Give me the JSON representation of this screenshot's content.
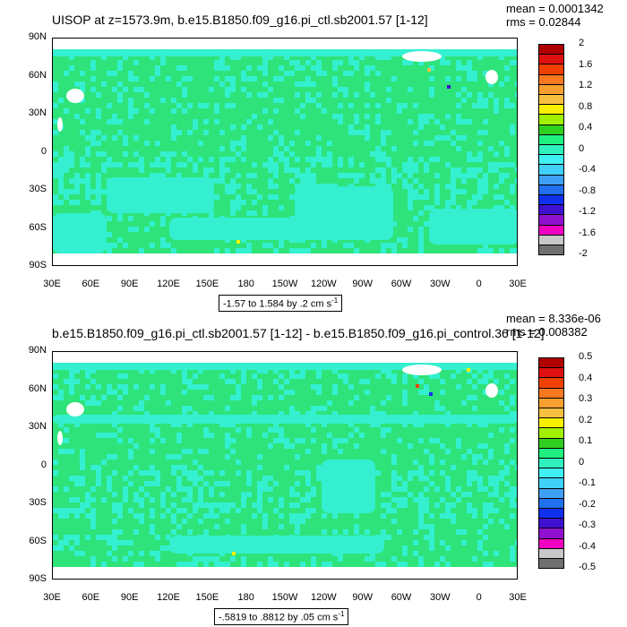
{
  "chart_data": [
    {
      "type": "heatmap",
      "title": "UISOP at z=1573.9m, b.e15.B1850.f09_g16.pi_ctl.sb2001.57 [1-12]",
      "mean_text": "mean = 0.0001342",
      "rms_text": "rms = 0.02844",
      "range_text": "-1.57 to 1.584 by .2 cm s",
      "range_sup": "-1",
      "lat_ticks": [
        "90N",
        "60N",
        "30N",
        "0",
        "30S",
        "60S",
        "90S"
      ],
      "lon_ticks": [
        "30E",
        "60E",
        "90E",
        "120E",
        "150E",
        "180",
        "150W",
        "120W",
        "90W",
        "60W",
        "30W",
        "0",
        "30E"
      ],
      "colorbar_labels": [
        "2",
        "1.6",
        "1.2",
        "0.8",
        "0.4",
        "0",
        "-0.4",
        "-0.8",
        "-1.2",
        "-1.6",
        "-2"
      ],
      "colorbar_colors": [
        "#b00000",
        "#e01010",
        "#f04000",
        "#f87820",
        "#f8a030",
        "#f8c040",
        "#f8f000",
        "#a0f000",
        "#30d020",
        "#20f080",
        "#30f0c0",
        "#40f0f0",
        "#40d0f8",
        "#40a0f8",
        "#2070f0",
        "#1030f0",
        "#4010d0",
        "#9010d0",
        "#f000c0",
        "#c8c8c8",
        "#707070"
      ]
    },
    {
      "type": "heatmap",
      "title": "b.e15.B1850.f09_g16.pi_ctl.sb2001.57 [1-12] - b.e15.B1850.f09_g16.pi_control.36 [1-12]",
      "mean_text": "mean = 8.336e-06",
      "rms_text": "rms = 0.008382",
      "range_text": "-.5819 to .8812 by .05 cm s",
      "range_sup": "-1",
      "lat_ticks": [
        "90N",
        "60N",
        "30N",
        "0",
        "30S",
        "60S",
        "90S"
      ],
      "lon_ticks": [
        "30E",
        "60E",
        "90E",
        "120E",
        "150E",
        "180",
        "150W",
        "120W",
        "90W",
        "60W",
        "30W",
        "0",
        "30E"
      ],
      "colorbar_labels": [
        "0.5",
        "0.4",
        "0.3",
        "0.2",
        "0.1",
        "0",
        "-0.1",
        "-0.2",
        "-0.3",
        "-0.4",
        "-0.5"
      ],
      "colorbar_colors": [
        "#b00000",
        "#e01010",
        "#f04000",
        "#f87820",
        "#f8a030",
        "#f8c040",
        "#f8f000",
        "#a0f000",
        "#30d020",
        "#20f080",
        "#30f0c0",
        "#40f0f0",
        "#40d0f8",
        "#40a0f8",
        "#2070f0",
        "#1030f0",
        "#4010d0",
        "#9010d0",
        "#f000c0",
        "#c8c8c8",
        "#707070"
      ]
    }
  ]
}
